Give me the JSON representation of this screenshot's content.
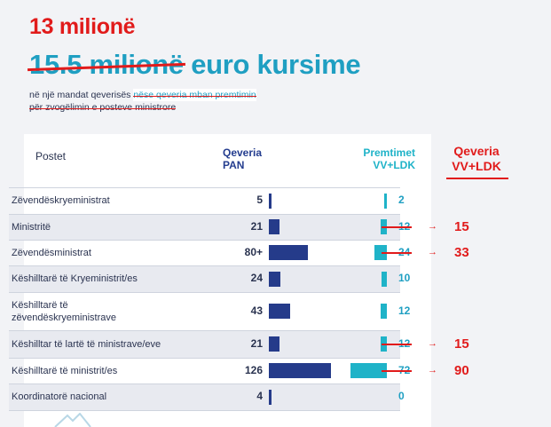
{
  "headline": {
    "new_amount": "13 milionë",
    "old_amount": "15.5 milionë",
    "rest": " euro kursime"
  },
  "subtitle": {
    "line1_a": "në një mandat qeverisës ",
    "line1_b": "nëse qeveria mban premtimin",
    "line2": "për zvogëlimin e posteve ministrore"
  },
  "headers": {
    "postet": "Postet",
    "qeveria_pan_1": "Qeveria",
    "qeveria_pan_2": "PAN",
    "premtimet_1": "Premtimet",
    "premtimet_2": "VV+LDK",
    "qeveria_vv_1": "Qeveria",
    "qeveria_vv_2": "VV+LDK"
  },
  "colors": {
    "pan_bar": "#253b8a",
    "prem_bar": "#1fb3c8",
    "red": "#e11b1b",
    "headline_blue": "#1f9fc2"
  },
  "chart_data": {
    "type": "table",
    "columns": [
      "Postet",
      "Qeveria PAN",
      "Premtimet VV+LDK",
      "Qeveria VV+LDK"
    ],
    "rows": [
      {
        "label": "Zëvendëskryeministrat",
        "pan": "5",
        "pan_value": 5,
        "prem": "2",
        "prem_value": 2,
        "prem_struck": false,
        "actual": ""
      },
      {
        "label": "Ministritë",
        "pan": "21",
        "pan_value": 21,
        "prem": "12",
        "prem_value": 12,
        "prem_struck": true,
        "actual": "15"
      },
      {
        "label": "Zëvendësministrat",
        "pan": "80+",
        "pan_value": 80,
        "prem": "24",
        "prem_value": 24,
        "prem_struck": true,
        "actual": "33"
      },
      {
        "label": "Këshilltarë të Kryeministrit/es",
        "pan": "24",
        "pan_value": 24,
        "prem": "10",
        "prem_value": 10,
        "prem_struck": false,
        "actual": ""
      },
      {
        "label": "Këshilltarë të\nzëvendëskryeministrave",
        "pan": "43",
        "pan_value": 43,
        "prem": "12",
        "prem_value": 12,
        "prem_struck": false,
        "actual": ""
      },
      {
        "label": "Këshilltar të lartë të ministrave/eve",
        "pan": "21",
        "pan_value": 21,
        "prem": "12",
        "prem_value": 12,
        "prem_struck": true,
        "actual": "15"
      },
      {
        "label": "Këshilltarë të ministrit/es",
        "pan": "126",
        "pan_value": 126,
        "prem": "72",
        "prem_value": 72,
        "prem_struck": true,
        "actual": "90"
      },
      {
        "label": "Koordinatorë nacional",
        "pan": "4",
        "pan_value": 4,
        "prem": "0",
        "prem_value": 0,
        "prem_struck": false,
        "actual": ""
      }
    ]
  }
}
